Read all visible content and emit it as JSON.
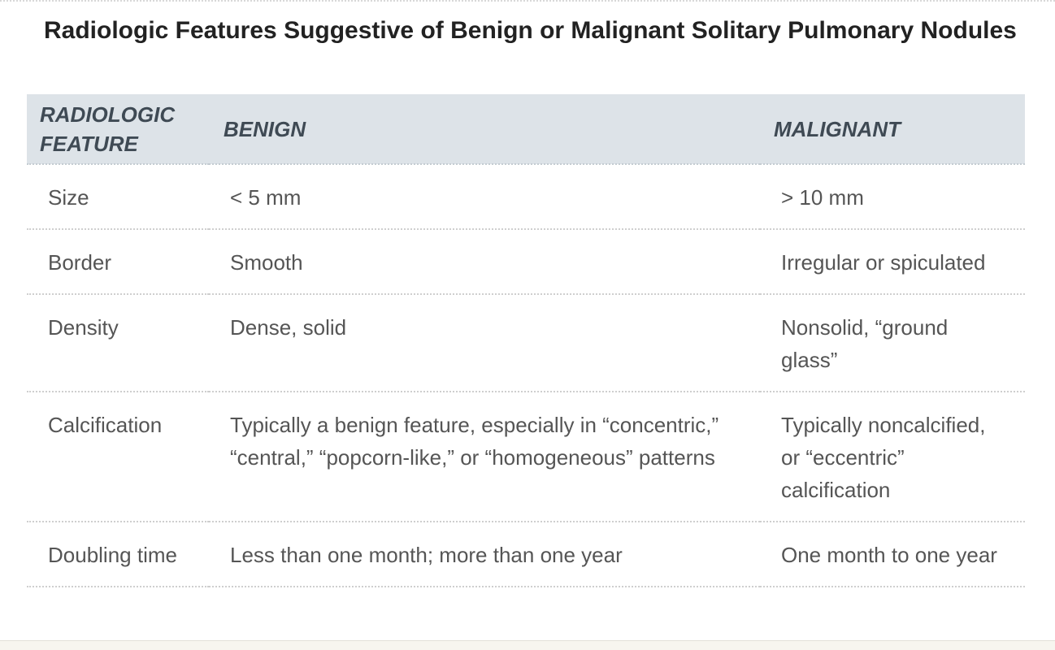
{
  "title": "Radiologic Features Suggestive of Benign or Malignant Solitary Pulmonary Nodules",
  "table": {
    "headers": [
      "RADIOLOGIC FEATURE",
      "BENIGN",
      "MALIGNANT"
    ],
    "rows": [
      {
        "feature": "Size",
        "benign": "< 5 mm",
        "malignant": "> 10 mm"
      },
      {
        "feature": "Border",
        "benign": "Smooth",
        "malignant": "Irregular or spiculated"
      },
      {
        "feature": "Density",
        "benign": "Dense, solid",
        "malignant": "Nonsolid, “ground glass”"
      },
      {
        "feature": "Calcification",
        "benign": "Typically a benign feature, especially in “concentric,” “central,” “popcorn-like,” or “homogeneous” patterns",
        "malignant": "Typically noncalcified, or “eccentric” calcification"
      },
      {
        "feature": "Doubling time",
        "benign": "Less than one month; more than one year",
        "malignant": "One month to one year"
      }
    ]
  }
}
